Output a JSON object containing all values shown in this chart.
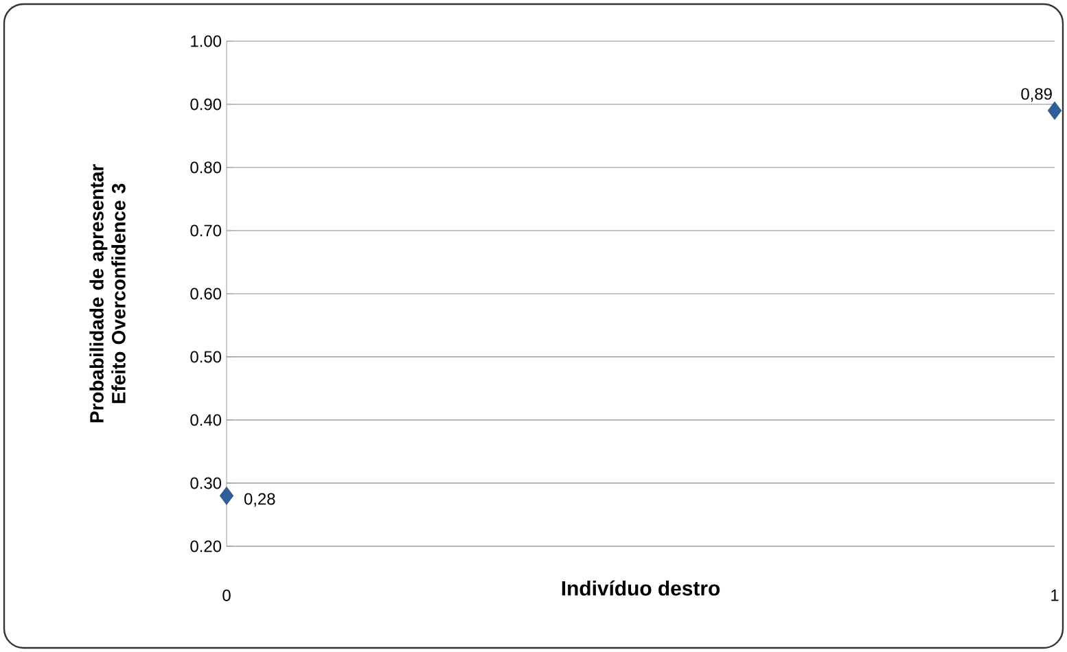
{
  "chart_data": {
    "type": "scatter",
    "xlabel": "Indivíduo destro",
    "ylabel": "Probabilidade de apresentar Efeito Overconfidence 3",
    "x": [
      0,
      1
    ],
    "series": [
      {
        "color": "#2e5f9a",
        "values": [
          0.28,
          0.89
        ],
        "value_labels": [
          "0,28",
          "0,89"
        ]
      }
    ],
    "xlim": [
      0,
      1
    ],
    "xticks": [
      0,
      1
    ],
    "ylim": [
      0.2,
      1.0
    ],
    "yticks": [
      {
        "value": 0.2,
        "label": "0.20"
      },
      {
        "value": 0.3,
        "label": "0.30"
      },
      {
        "value": 0.4,
        "label": "0.40"
      },
      {
        "value": 0.5,
        "label": "0.50"
      },
      {
        "value": 0.6,
        "label": "0.60"
      },
      {
        "value": 0.7,
        "label": "0.70"
      },
      {
        "value": 0.8,
        "label": "0.80"
      },
      {
        "value": 0.9,
        "label": "0.90"
      },
      {
        "value": 1.0,
        "label": "1.00"
      }
    ],
    "grid": "y",
    "marker": "diamond"
  }
}
